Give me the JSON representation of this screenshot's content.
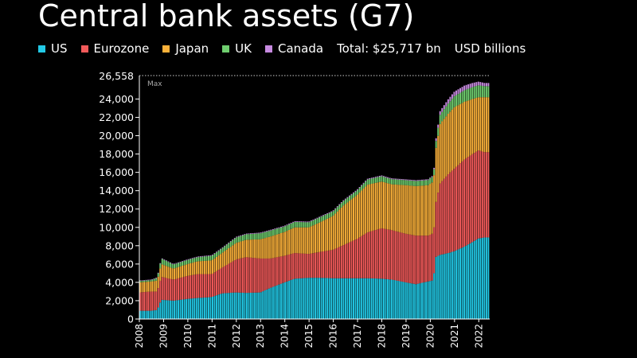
{
  "title": "Central bank assets (G7)",
  "total_label": "Total: $25,717 bn",
  "unit_label": "USD billions",
  "max_label": "Max",
  "max_value_label": "26,558",
  "colors": {
    "US": "#22c9e6",
    "Eurozone": "#f25a5a",
    "Japan": "#fbb13a",
    "UK": "#6fce6f",
    "Canada": "#c78ae0",
    "background": "#000000",
    "axis": "#ffffff"
  },
  "chart_data": {
    "type": "bar",
    "stacked": true,
    "title": "Central bank assets (G7)",
    "ylabel": "USD billions",
    "ylim": [
      0,
      26558
    ],
    "yticks": [
      0,
      2000,
      4000,
      6000,
      8000,
      10000,
      12000,
      14000,
      16000,
      18000,
      20000,
      22000,
      24000
    ],
    "ytick_labels": [
      "0",
      "2,000",
      "4,000",
      "6,000",
      "8,000",
      "10,000",
      "12,000",
      "14,000",
      "16,000",
      "18,000",
      "20,000",
      "22,000",
      "24,000"
    ],
    "xtick_labels": [
      "2008",
      "2009",
      "2010",
      "2011",
      "2012",
      "2013",
      "2014",
      "2015",
      "2016",
      "2017",
      "2018",
      "2019",
      "2020",
      "2021",
      "2022"
    ],
    "x": [
      "2008-01",
      "2008-07",
      "2008-10",
      "2008-12",
      "2009-06",
      "2010-01",
      "2010-06",
      "2011-01",
      "2011-06",
      "2012-01",
      "2012-06",
      "2013-01",
      "2013-06",
      "2014-01",
      "2014-06",
      "2015-01",
      "2015-06",
      "2016-01",
      "2016-06",
      "2017-01",
      "2017-06",
      "2018-01",
      "2018-06",
      "2019-01",
      "2019-06",
      "2019-12",
      "2020-02",
      "2020-03",
      "2020-04",
      "2020-06",
      "2020-10",
      "2021-01",
      "2021-06",
      "2021-10",
      "2022-01",
      "2022-04"
    ],
    "legend_position": "top",
    "grid": false,
    "max": 26558,
    "series": [
      {
        "name": "US",
        "values": [
          900,
          900,
          1000,
          2100,
          2000,
          2200,
          2300,
          2400,
          2800,
          2900,
          2850,
          2900,
          3400,
          4000,
          4400,
          4500,
          4500,
          4450,
          4450,
          4450,
          4450,
          4400,
          4300,
          4000,
          3800,
          4100,
          4200,
          5000,
          6800,
          7000,
          7200,
          7400,
          7900,
          8400,
          8800,
          8900
        ]
      },
      {
        "name": "Eurozone",
        "values": [
          2000,
          2100,
          2000,
          2500,
          2300,
          2500,
          2600,
          2500,
          2800,
          3600,
          3900,
          3700,
          3200,
          2900,
          2800,
          2600,
          2800,
          3100,
          3600,
          4300,
          5000,
          5500,
          5400,
          5300,
          5300,
          5000,
          5100,
          5000,
          6000,
          7800,
          8600,
          9000,
          9500,
          9600,
          9600,
          9300
        ]
      },
      {
        "name": "Japan",
        "values": [
          1100,
          1100,
          1200,
          1400,
          1200,
          1300,
          1400,
          1500,
          1600,
          1800,
          1900,
          2100,
          2400,
          2600,
          2800,
          2900,
          3200,
          3700,
          4300,
          4800,
          5200,
          5100,
          5000,
          5300,
          5400,
          5500,
          5600,
          5700,
          5900,
          6500,
          6600,
          6700,
          6300,
          6000,
          5800,
          6000
        ]
      },
      {
        "name": "UK",
        "values": [
          150,
          150,
          300,
          600,
          450,
          450,
          450,
          500,
          500,
          600,
          600,
          650,
          650,
          600,
          600,
          550,
          550,
          500,
          500,
          500,
          560,
          580,
          560,
          550,
          560,
          560,
          600,
          650,
          750,
          1000,
          1100,
          1200,
          1250,
          1300,
          1300,
          1200
        ]
      },
      {
        "name": "Canada",
        "values": [
          60,
          60,
          60,
          60,
          60,
          60,
          70,
          70,
          70,
          70,
          70,
          80,
          80,
          80,
          80,
          80,
          80,
          80,
          90,
          90,
          90,
          90,
          90,
          90,
          90,
          90,
          90,
          150,
          300,
          400,
          480,
          500,
          520,
          450,
          400,
          350
        ]
      }
    ]
  }
}
